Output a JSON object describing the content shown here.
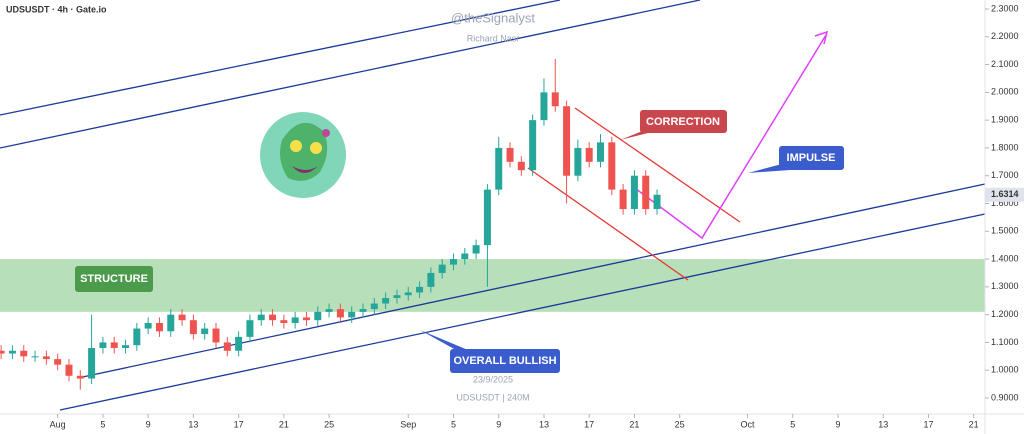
{
  "chart_data": {
    "type": "candlestick",
    "title": "UDSUSDT · 4h · Gate.io",
    "watermark": [
      "@theSignalyst",
      "Richard Nasr",
      "23/9/2025",
      "UDSUSDT | 240M"
    ],
    "annotations": [
      "CORRECTION",
      "IMPULSE",
      "STRUCTURE",
      "OVERALL BULLISH"
    ],
    "up_color": "#26a69a",
    "down_color": "#ef5350",
    "x": [
      -5,
      -4,
      -3,
      -2,
      -1,
      0,
      1,
      2,
      3,
      4,
      5,
      6,
      7,
      8,
      9,
      10,
      11,
      12,
      13,
      14,
      15,
      16,
      17,
      18,
      19,
      20,
      21,
      22,
      23,
      24,
      25,
      26,
      27,
      28,
      29,
      30,
      31,
      32,
      33,
      34,
      35,
      36,
      37,
      38,
      39,
      40,
      41,
      42,
      43,
      44,
      45,
      46,
      47,
      48,
      49,
      50,
      51,
      52,
      53
    ],
    "open": [
      1.07,
      1.06,
      1.07,
      1.05,
      1.05,
      1.04,
      1.02,
      0.98,
      0.97,
      1.08,
      1.1,
      1.08,
      1.09,
      1.15,
      1.17,
      1.14,
      1.2,
      1.18,
      1.13,
      1.15,
      1.1,
      1.07,
      1.12,
      1.18,
      1.2,
      1.18,
      1.17,
      1.19,
      1.18,
      1.21,
      1.22,
      1.19,
      1.21,
      1.22,
      1.24,
      1.26,
      1.27,
      1.28,
      1.3,
      1.35,
      1.38,
      1.4,
      1.42,
      1.45,
      1.65,
      1.8,
      1.75,
      1.72,
      1.9,
      2.0,
      1.95,
      1.7,
      1.8,
      1.75,
      1.82,
      1.65,
      1.58,
      1.7,
      1.58
    ],
    "high": [
      1.09,
      1.09,
      1.09,
      1.07,
      1.07,
      1.06,
      1.04,
      1.0,
      1.2,
      1.12,
      1.12,
      1.11,
      1.17,
      1.19,
      1.19,
      1.22,
      1.22,
      1.2,
      1.17,
      1.17,
      1.12,
      1.14,
      1.2,
      1.22,
      1.22,
      1.2,
      1.21,
      1.21,
      1.23,
      1.24,
      1.24,
      1.23,
      1.24,
      1.26,
      1.28,
      1.29,
      1.3,
      1.32,
      1.37,
      1.4,
      1.42,
      1.44,
      1.47,
      1.67,
      1.84,
      1.82,
      1.77,
      1.92,
      2.05,
      2.12,
      1.97,
      1.83,
      1.82,
      1.85,
      1.84,
      1.67,
      1.72,
      1.72,
      1.65
    ],
    "low": [
      1.04,
      1.04,
      1.03,
      1.03,
      1.02,
      1.0,
      0.96,
      0.93,
      0.95,
      1.06,
      1.06,
      1.06,
      1.07,
      1.13,
      1.12,
      1.12,
      1.16,
      1.11,
      1.11,
      1.08,
      1.05,
      1.05,
      1.1,
      1.16,
      1.16,
      1.15,
      1.15,
      1.16,
      1.16,
      1.19,
      1.17,
      1.17,
      1.19,
      1.2,
      1.22,
      1.24,
      1.25,
      1.26,
      1.28,
      1.33,
      1.36,
      1.38,
      1.4,
      1.3,
      1.63,
      1.73,
      1.7,
      1.7,
      1.88,
      1.93,
      1.6,
      1.68,
      1.73,
      1.73,
      1.63,
      1.56,
      1.56,
      1.56,
      1.56
    ],
    "close": [
      1.06,
      1.07,
      1.05,
      1.05,
      1.04,
      1.02,
      0.98,
      0.97,
      1.08,
      1.1,
      1.08,
      1.09,
      1.15,
      1.17,
      1.14,
      1.2,
      1.18,
      1.13,
      1.15,
      1.1,
      1.07,
      1.12,
      1.18,
      1.2,
      1.18,
      1.17,
      1.19,
      1.18,
      1.21,
      1.22,
      1.19,
      1.21,
      1.22,
      1.24,
      1.26,
      1.27,
      1.28,
      1.3,
      1.35,
      1.38,
      1.4,
      1.42,
      1.45,
      1.65,
      1.8,
      1.75,
      1.72,
      1.9,
      2.0,
      1.95,
      1.7,
      1.8,
      1.75,
      1.82,
      1.65,
      1.58,
      1.7,
      1.58,
      1.6314
    ],
    "last_price": 1.6314,
    "zone": [
      1.21,
      1.4
    ],
    "xlim": [
      -5.1,
      82
    ],
    "ylim": [
      0.9,
      2.3
    ],
    "xticks": [
      {
        "value": 0,
        "label": "Aug"
      },
      {
        "value": 4,
        "label": "5"
      },
      {
        "value": 8,
        "label": "9"
      },
      {
        "value": 12,
        "label": "13"
      },
      {
        "value": 16,
        "label": "17"
      },
      {
        "value": 20,
        "label": "21"
      },
      {
        "value": 24,
        "label": "25"
      },
      {
        "value": 31,
        "label": "Sep"
      },
      {
        "value": 35,
        "label": "5"
      },
      {
        "value": 39,
        "label": "9"
      },
      {
        "value": 43,
        "label": "13"
      },
      {
        "value": 47,
        "label": "17"
      },
      {
        "value": 51,
        "label": "21"
      },
      {
        "value": 55,
        "label": "25"
      },
      {
        "value": 61,
        "label": "Oct"
      },
      {
        "value": 65,
        "label": "5"
      },
      {
        "value": 69,
        "label": "9"
      },
      {
        "value": 73,
        "label": "13"
      },
      {
        "value": 77,
        "label": "17"
      },
      {
        "value": 81,
        "label": "21"
      }
    ],
    "yticks": [
      {
        "value": 0.9,
        "label": "0.9000"
      },
      {
        "value": 1.0,
        "label": "1.0000"
      },
      {
        "value": 1.1,
        "label": "1.1000"
      },
      {
        "value": 1.2,
        "label": "1.2000"
      },
      {
        "value": 1.3,
        "label": "1.3000"
      },
      {
        "value": 1.4,
        "label": "1.4000"
      },
      {
        "value": 1.5,
        "label": "1.5000"
      },
      {
        "value": 1.6,
        "label": "1.6000"
      },
      {
        "value": 1.7,
        "label": "1.7000"
      },
      {
        "value": 1.8,
        "label": "1.8000"
      },
      {
        "value": 1.9,
        "label": "1.9000"
      },
      {
        "value": 2.0,
        "label": "2.0000"
      },
      {
        "value": 2.1,
        "label": "2.1000"
      },
      {
        "value": 2.2,
        "label": "2.2000"
      },
      {
        "value": 2.3,
        "label": "2.3000"
      }
    ]
  }
}
